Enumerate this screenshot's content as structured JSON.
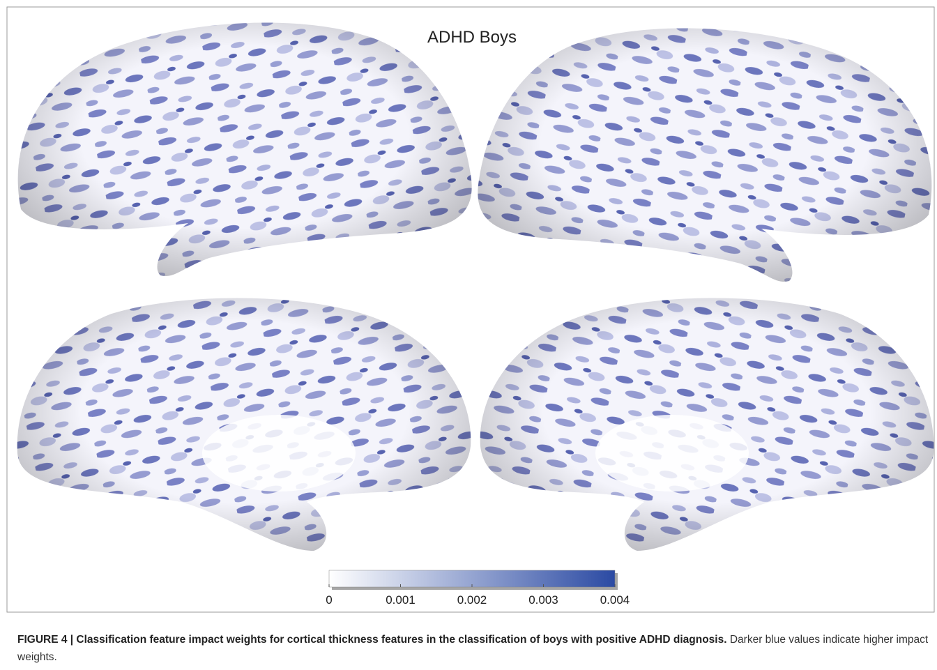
{
  "figure": {
    "title": "ADHD Boys",
    "colorbar": {
      "lim": [
        0,
        0.004
      ],
      "ticks": [
        0,
        0.001,
        0.002,
        0.003,
        0.004
      ],
      "color_low": "#ffffff",
      "color_high": "#2b4aa3"
    }
  },
  "caption": {
    "label": "FIGURE 4 | Classification feature impact weights for cortical thickness features in the classification of boys with positive ADHD diagnosis.",
    "text": "Darker blue values indicate higher impact weights."
  }
}
